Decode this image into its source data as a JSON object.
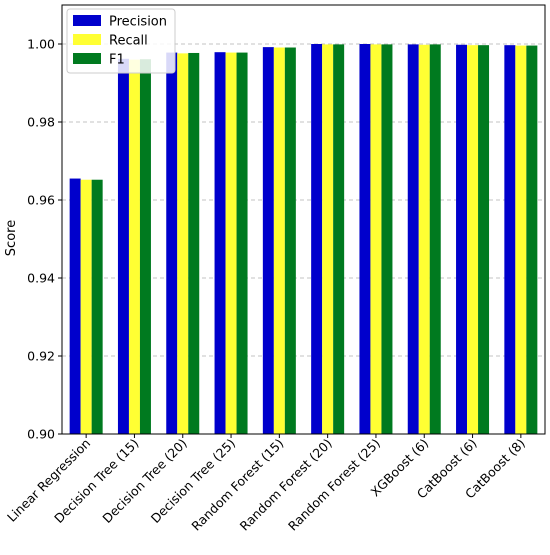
{
  "chart_data": {
    "type": "bar",
    "categories": [
      "Linear Regression",
      "Decision Tree (15)",
      "Decision Tree (20)",
      "Decision Tree (25)",
      "Random Forest (15)",
      "Random Forest (20)",
      "Random Forest (25)",
      "XGBoost (6)",
      "CatBoost (6)",
      "CatBoost (8)"
    ],
    "series": [
      {
        "name": "Precision",
        "color": "#0000cc",
        "values": [
          0.9655,
          0.9962,
          0.9978,
          0.9979,
          0.9992,
          1.0,
          1.0,
          0.9999,
          0.9998,
          0.9997
        ]
      },
      {
        "name": "Recall",
        "color": "#ffff33",
        "values": [
          0.9652,
          0.996,
          0.9976,
          0.9978,
          0.9991,
          0.9999,
          0.9999,
          0.9998,
          0.9997,
          0.9996
        ]
      },
      {
        "name": "F1",
        "color": "#007a1f",
        "values": [
          0.9652,
          0.9961,
          0.9977,
          0.9978,
          0.9991,
          0.9999,
          0.9999,
          0.9999,
          0.9997,
          0.9996
        ]
      }
    ],
    "xlabel": "",
    "ylabel": "Score",
    "ylim": [
      0.9,
      1.01
    ],
    "yticks": [
      0.9,
      0.92,
      0.94,
      0.96,
      0.98,
      1.0
    ],
    "ytick_labels": [
      "0.90",
      "0.92",
      "0.94",
      "0.96",
      "0.98",
      "1.00"
    ],
    "grid": "horizontal-dashed",
    "legend": "top-left"
  }
}
